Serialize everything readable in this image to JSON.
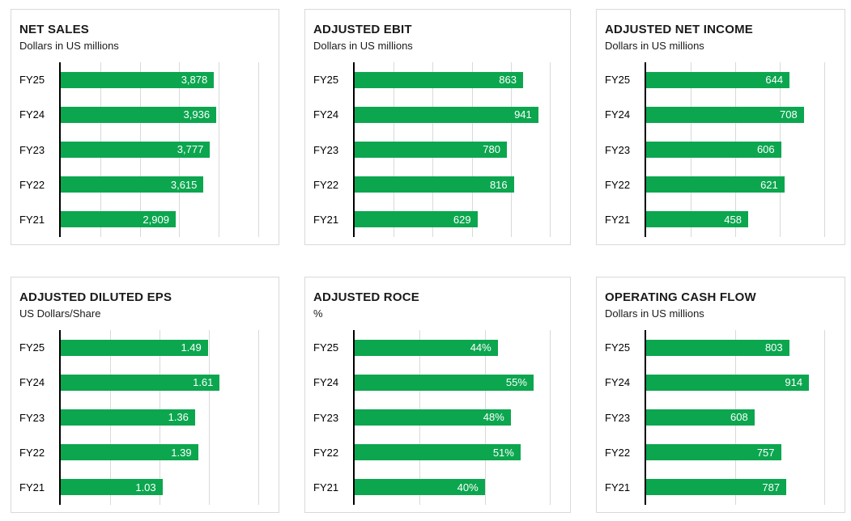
{
  "colors": {
    "bar": "#0ca64f",
    "bar_label": "#ffffff",
    "title_text": "#1a1a1a",
    "panel_border": "#d9d9d9",
    "gridline": "#d9d9d9",
    "axis_line": "#000000",
    "background": "#ffffff"
  },
  "chart_data": [
    {
      "type": "bar",
      "orientation": "horizontal",
      "title": "NET SALES",
      "subtitle": "Dollars in US millions",
      "categories": [
        "FY25",
        "FY24",
        "FY23",
        "FY22",
        "FY21"
      ],
      "values": [
        3878,
        3936,
        3777,
        3615,
        2909
      ],
      "value_labels": [
        "3,878",
        "3,936",
        "3,777",
        "3,615",
        "2,909"
      ],
      "xlim": [
        0,
        5000
      ],
      "gridline_interval": 1000,
      "grid": true,
      "legend": false,
      "data_labels": "inside-end"
    },
    {
      "type": "bar",
      "orientation": "horizontal",
      "title": "ADJUSTED EBIT",
      "subtitle": "Dollars in US millions",
      "categories": [
        "FY25",
        "FY24",
        "FY23",
        "FY22",
        "FY21"
      ],
      "values": [
        863,
        941,
        780,
        816,
        629
      ],
      "value_labels": [
        "863",
        "941",
        "780",
        "816",
        "629"
      ],
      "xlim": [
        0,
        1000
      ],
      "gridline_interval": 200,
      "grid": true,
      "legend": false,
      "data_labels": "inside-end"
    },
    {
      "type": "bar",
      "orientation": "horizontal",
      "title": "ADJUSTED NET INCOME",
      "subtitle": "Dollars in US millions",
      "categories": [
        "FY25",
        "FY24",
        "FY23",
        "FY22",
        "FY21"
      ],
      "values": [
        644,
        708,
        606,
        621,
        458
      ],
      "value_labels": [
        "644",
        "708",
        "606",
        "621",
        "458"
      ],
      "xlim": [
        0,
        800
      ],
      "gridline_interval": 200,
      "grid": true,
      "legend": false,
      "data_labels": "inside-end"
    },
    {
      "type": "bar",
      "orientation": "horizontal",
      "title": "ADJUSTED DILUTED EPS",
      "subtitle": "US Dollars/Share",
      "categories": [
        "FY25",
        "FY24",
        "FY23",
        "FY22",
        "FY21"
      ],
      "values": [
        1.49,
        1.61,
        1.36,
        1.39,
        1.03
      ],
      "value_labels": [
        "1.49",
        "1.61",
        "1.36",
        "1.39",
        "1.03"
      ],
      "xlim": [
        0,
        2.0
      ],
      "gridline_interval": 0.5,
      "grid": true,
      "legend": false,
      "data_labels": "inside-end"
    },
    {
      "type": "bar",
      "orientation": "horizontal",
      "title": "ADJUSTED ROCE",
      "subtitle": "%",
      "categories": [
        "FY25",
        "FY24",
        "FY23",
        "FY22",
        "FY21"
      ],
      "values": [
        44,
        55,
        48,
        51,
        40
      ],
      "value_labels": [
        "44%",
        "55%",
        "48%",
        "51%",
        "40%"
      ],
      "xlim": [
        0,
        60
      ],
      "gridline_interval": 20,
      "grid": true,
      "legend": false,
      "data_labels": "inside-end"
    },
    {
      "type": "bar",
      "orientation": "horizontal",
      "title": "OPERATING CASH FLOW",
      "subtitle": "Dollars in US millions",
      "categories": [
        "FY25",
        "FY24",
        "FY23",
        "FY22",
        "FY21"
      ],
      "values": [
        803,
        914,
        608,
        757,
        787
      ],
      "value_labels": [
        "803",
        "914",
        "608",
        "757",
        "787"
      ],
      "xlim": [
        0,
        1000
      ],
      "gridline_interval": 500,
      "grid": true,
      "legend": false,
      "data_labels": "inside-end"
    }
  ]
}
